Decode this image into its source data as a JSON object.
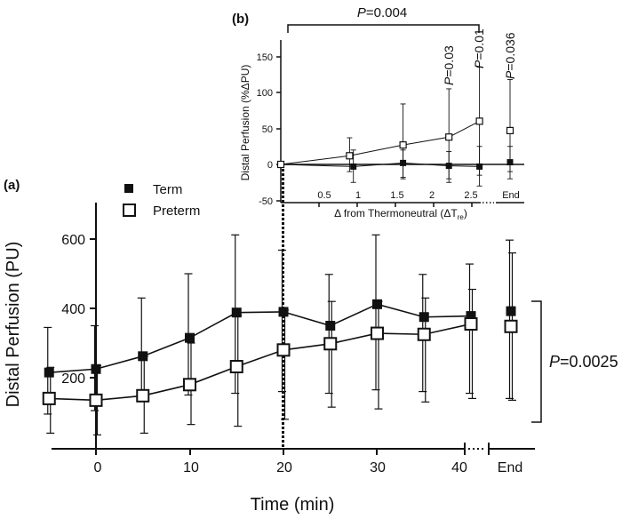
{
  "chart_data": [
    {
      "type": "line",
      "panel_label": "(a)",
      "xlabel": "Time (min)",
      "ylabel": "Distal Perfusion (PU)",
      "x_ticks": [
        "0",
        "10",
        "20",
        "30",
        "40"
      ],
      "x_end_label": "End",
      "y_ticks": [
        "200",
        "400",
        "600"
      ],
      "ylim": [
        0,
        700
      ],
      "x": [
        -5,
        0,
        5,
        10,
        15,
        20,
        25,
        30,
        35,
        40
      ],
      "legend": {
        "placement": "top-left",
        "entries": [
          "Term",
          "Preterm"
        ]
      },
      "series": [
        {
          "name": "Term",
          "marker": "filled-square",
          "values": [
            215,
            225,
            262,
            315,
            388,
            390,
            350,
            412,
            375,
            378
          ],
          "err_low": [
            95,
            105,
            135,
            150,
            155,
            160,
            155,
            165,
            160,
            155
          ],
          "err_high": [
            345,
            350,
            430,
            500,
            612,
            568,
            498,
            612,
            498,
            528
          ],
          "end_value": 392,
          "end_err_low": 140,
          "end_err_high": 597
        },
        {
          "name": "Preterm",
          "marker": "open-square",
          "values": [
            140,
            135,
            148,
            180,
            232,
            280,
            298,
            328,
            325,
            355
          ],
          "err_low": [
            40,
            35,
            40,
            65,
            60,
            80,
            115,
            110,
            130,
            140
          ],
          "err_high": [
            230,
            235,
            262,
            300,
            380,
            395,
            420,
            420,
            430,
            455
          ],
          "end_value": 348,
          "end_err_low": 135,
          "end_err_high": 560
        }
      ],
      "annotation": {
        "label": "P=0.0025",
        "italic": "P",
        "rest": "=0.0025"
      }
    },
    {
      "type": "line",
      "panel_label": "(b)",
      "xlabel_main": "Δ from Thermoneutral (ΔT",
      "xlabel_sub": "re",
      "xlabel_close": ")",
      "ylabel": "Distal Perfusion (%ΔPU)",
      "x_ticks": [
        "0.5",
        "1",
        "1.5",
        "2",
        "2.5"
      ],
      "x_end_label": "End",
      "y_ticks": [
        "-50",
        "0",
        "50",
        "100",
        "150"
      ],
      "ylim": [
        -50,
        150
      ],
      "series": [
        {
          "name": "Term",
          "marker": "filled-square",
          "x": [
            0,
            0.95,
            1.6,
            2.2,
            2.6
          ],
          "values": [
            0,
            -3,
            2,
            -2,
            -3
          ],
          "err_low": [
            0,
            -25,
            -18,
            -20,
            -30
          ],
          "err_high": [
            0,
            20,
            20,
            18,
            25
          ],
          "end_value": 3,
          "end_err_low": -20,
          "end_err_high": 25
        },
        {
          "name": "Preterm",
          "marker": "open-square",
          "x": [
            0,
            0.9,
            1.6,
            2.2,
            2.6
          ],
          "values": [
            0,
            12,
            27,
            38,
            60
          ],
          "err_low": [
            0,
            -10,
            -20,
            -25,
            -15
          ],
          "err_high": [
            0,
            37,
            84,
            105,
            135
          ],
          "end_value": 47,
          "end_err_low": -10,
          "end_err_high": 118
        }
      ],
      "point_annotations": [
        {
          "label": "P=0.03",
          "italic": "P",
          "rest": "=0.03"
        },
        {
          "label": "P=0.01",
          "italic": "P",
          "rest": "=0.01"
        },
        {
          "label": "P=0.036",
          "italic": "P",
          "rest": "=0.036"
        }
      ],
      "bracket_annotation": {
        "label": "P=0.004",
        "italic": "P",
        "rest": "=0.004"
      }
    }
  ]
}
